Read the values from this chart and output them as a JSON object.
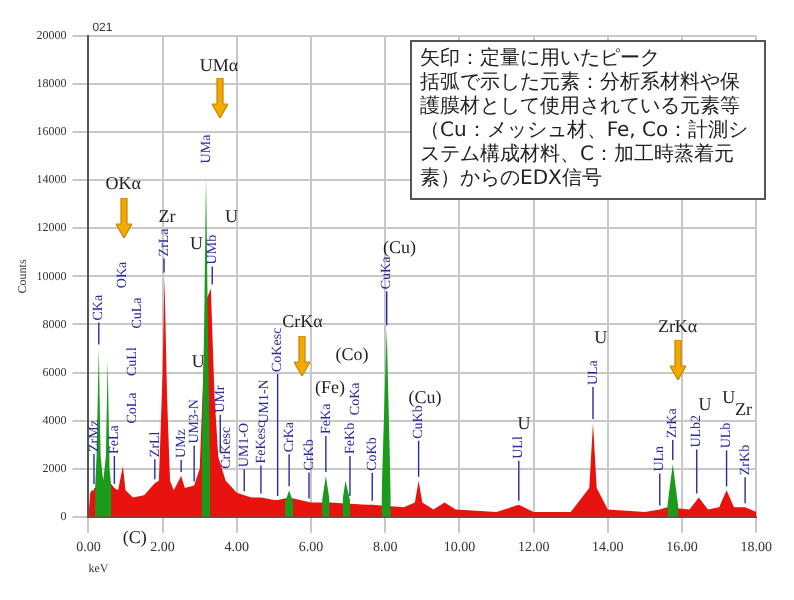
{
  "chart_data": {
    "type": "area",
    "xlabel": "keV",
    "ylabel": "Counts",
    "xlim": [
      0,
      18
    ],
    "xticks": [
      {
        "value": 0,
        "label": "0.00"
      },
      {
        "value": 2,
        "label": "2.00"
      },
      {
        "value": 4,
        "label": "4.00"
      },
      {
        "value": 6,
        "label": "6.00"
      },
      {
        "value": 8,
        "label": "8.00"
      },
      {
        "value": 10,
        "label": "10.00"
      },
      {
        "value": 12,
        "label": "12.00"
      },
      {
        "value": 14,
        "label": "14.00"
      },
      {
        "value": 16,
        "label": "16.00"
      },
      {
        "value": 18,
        "label": "18.00"
      }
    ],
    "ylim": [
      0,
      20000
    ],
    "yticks": [
      0,
      2000,
      4000,
      6000,
      8000,
      10000,
      12000,
      14000,
      16000,
      18000,
      20000
    ],
    "grid": true,
    "marker": "none",
    "series": [
      {
        "color": "#e8120e",
        "x": [
          0,
          0.05,
          0.1,
          0.15,
          0.2,
          0.3,
          0.4,
          0.5,
          0.6,
          0.7,
          0.8,
          0.93,
          1.0,
          1.2,
          1.5,
          1.79,
          1.9,
          2.0,
          2.05,
          2.12,
          2.2,
          2.3,
          2.5,
          2.6,
          2.85,
          3.0,
          3.17,
          3.3,
          3.4,
          3.5,
          3.6,
          3.7,
          4.0,
          4.2,
          4.4,
          4.5,
          4.65,
          5.0,
          5.1,
          5.41,
          6.0,
          6.5,
          7.5,
          7.65,
          8.5,
          8.8,
          8.9,
          9.0,
          9.3,
          9.6,
          9.9,
          11.0,
          11.6,
          12.0,
          13.0,
          13.5,
          13.6,
          13.7,
          14.0,
          15.0,
          15.4,
          15.6,
          16.2,
          16.45,
          16.7,
          17.0,
          17.2,
          17.4,
          17.7,
          18.0
        ],
        "values": [
          0,
          1000,
          1100,
          1200,
          1200,
          1300,
          1200,
          1300,
          1400,
          1200,
          1100,
          2100,
          1100,
          800,
          900,
          1400,
          1500,
          6000,
          10000,
          5000,
          1500,
          1100,
          1700,
          1200,
          1300,
          2000,
          9000,
          9500,
          5000,
          2500,
          2000,
          1500,
          1000,
          900,
          800,
          800,
          800,
          700,
          700,
          800,
          600,
          600,
          500,
          500,
          400,
          600,
          1500,
          600,
          300,
          600,
          300,
          200,
          500,
          200,
          200,
          1200,
          3900,
          1200,
          300,
          200,
          300,
          400,
          300,
          800,
          300,
          400,
          1100,
          400,
          400,
          200
        ]
      },
      {
        "color": "#1c9a1c",
        "x": [
          0.18,
          0.22,
          0.28,
          0.33,
          0.4,
          0.47,
          0.52,
          0.57,
          0.62,
          0.63,
          3.05,
          3.12,
          3.17,
          3.22,
          3.28,
          3.29,
          5.3,
          5.41,
          5.52,
          5.53,
          6.3,
          6.4,
          6.5,
          6.51,
          6.85,
          6.93,
          7.05,
          7.06,
          7.9,
          8.04,
          8.15,
          8.16,
          15.6,
          15.75,
          15.9
        ],
        "values": [
          1200,
          2500,
          7000,
          2500,
          1500,
          2500,
          6500,
          2000,
          1200,
          null,
          2000,
          8000,
          14200,
          8000,
          2000,
          null,
          600,
          1100,
          600,
          null,
          700,
          1700,
          700,
          null,
          700,
          1500,
          700,
          null,
          800,
          7800,
          800,
          null,
          400,
          2200,
          400
        ]
      }
    ],
    "annotations": [
      {
        "text": "ZrMz",
        "x": 0.15,
        "y": 1200
      },
      {
        "text": "CKa",
        "x": 0.28,
        "y": 7000
      },
      {
        "text": "FeLa",
        "x": 0.7,
        "y": 1200
      },
      {
        "text": "ZrLl",
        "x": 1.79,
        "y": 1400
      },
      {
        "text": "ZrLa",
        "x": 2.05,
        "y": 10000
      },
      {
        "text": "UMz",
        "x": 2.5,
        "y": 1700
      },
      {
        "text": "UM3-N",
        "x": 2.85,
        "y": 1300
      },
      {
        "text": "UMa",
        "x": 3.17,
        "y": 14200
      },
      {
        "text": "UMb",
        "x": 3.3,
        "y": 9500
      },
      {
        "text": "UMr",
        "x": 3.5,
        "y": 2500
      },
      {
        "text": "CrKesc",
        "x": 3.7,
        "y": 1500
      },
      {
        "text": "UM1-O",
        "x": 4.2,
        "y": 900
      },
      {
        "text": "FeKesc",
        "x": 4.65,
        "y": 800
      },
      {
        "text": "CoKesc",
        "x": 5.1,
        "y": 700
      },
      {
        "text": "CrKa",
        "x": 5.41,
        "y": 1100
      },
      {
        "text": "CrKb",
        "x": 6.0,
        "y": 600
      },
      {
        "text": "FeKa",
        "x": 6.4,
        "y": 1700
      },
      {
        "text": "FeKb",
        "x": 7.05,
        "y": 700
      },
      {
        "text": "CoKb",
        "x": 7.65,
        "y": 500
      },
      {
        "text": "CuKa",
        "x": 8.04,
        "y": 7800
      },
      {
        "text": "CuKb",
        "x": 8.9,
        "y": 1500
      },
      {
        "text": "ULl",
        "x": 11.6,
        "y": 500
      },
      {
        "text": "ULa",
        "x": 13.6,
        "y": 3900
      },
      {
        "text": "ULn",
        "x": 15.4,
        "y": 300
      },
      {
        "text": "ZrKa",
        "x": 15.75,
        "y": 2200
      },
      {
        "text": "ULb2",
        "x": 16.45,
        "y": 800
      },
      {
        "text": "ULb",
        "x": 17.2,
        "y": 1100
      },
      {
        "text": "ZrKb",
        "x": 17.7,
        "y": 400
      },
      "021",
      "矢印：定量に用いたピーク",
      "括弧で示した元素：分析系材料や保護膜材として使用されている元素等（Cu：メッシュ材、Fe, Co：計測システム構成材料、C：加工時蒸着元素）からのEDX信号",
      "OKα",
      "UMα",
      "CrKα",
      "ZrKα",
      "Zr",
      "U",
      "U",
      "(Cu)",
      "U",
      "(Fe)",
      "(Co)",
      "(Cu)",
      "U",
      "U",
      "U",
      "U",
      "Zr",
      "(C)",
      "OKa",
      "CoLa",
      "CuLl",
      "CuLa",
      "UM1-N",
      "CoKa"
    ]
  }
}
